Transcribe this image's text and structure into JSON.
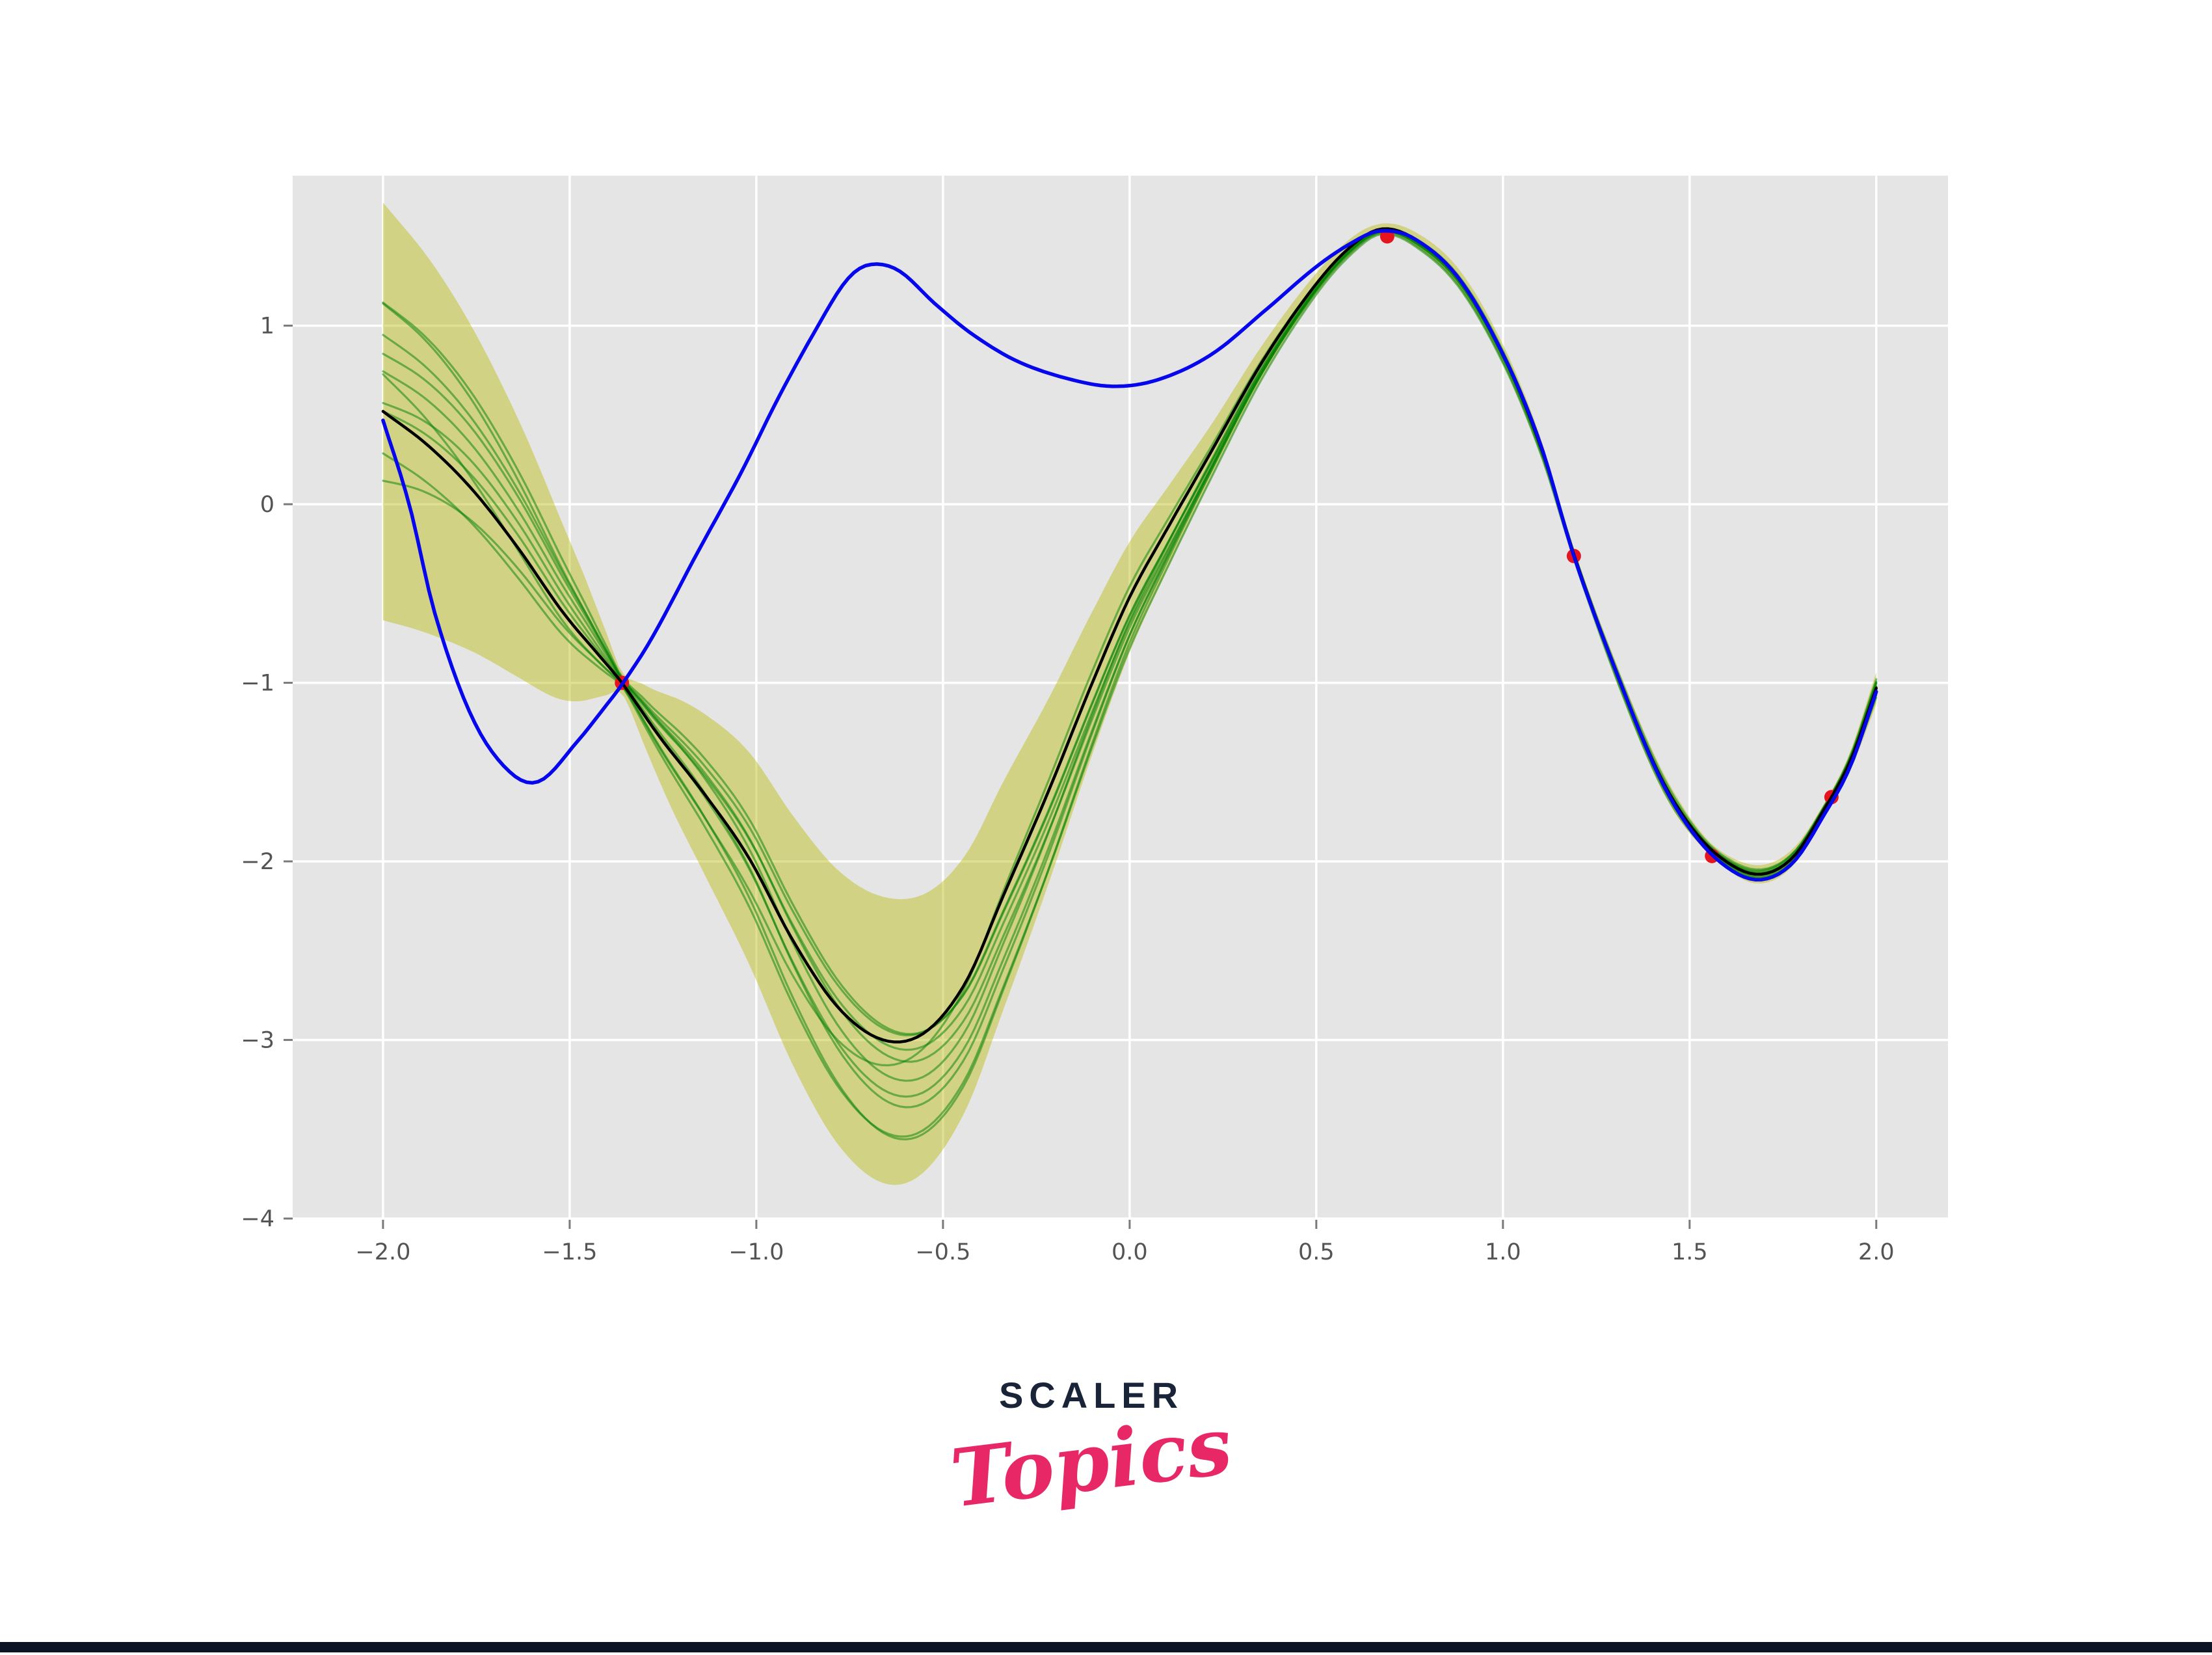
{
  "page": {
    "background": "#ffffff",
    "footer_bar_color": "#0c1424"
  },
  "logo": {
    "line1": "SCALER",
    "line1_color": "#1a2438",
    "line2": "Topics",
    "line2_color": "#e82866"
  },
  "chart_data": {
    "type": "line",
    "title": "",
    "xlabel": "",
    "ylabel": "",
    "grid": true,
    "legend": "none",
    "xlim": [
      -2.242,
      2.192
    ],
    "ylim": [
      -4.007,
      1.84
    ],
    "x_ticks": {
      "values": [
        -2.0,
        -1.5,
        -1.0,
        -0.5,
        0.0,
        0.5,
        1.0,
        1.5,
        2.0
      ],
      "labels": [
        "−2.0",
        "−1.5",
        "−1.0",
        "−0.5",
        "0.0",
        "0.5",
        "1.0",
        "1.5",
        "2.0"
      ]
    },
    "y_ticks": {
      "values": [
        1,
        0,
        -1,
        -2,
        -3,
        -4
      ],
      "labels": [
        "1",
        "0",
        "−1",
        "−2",
        "−3",
        "−4"
      ]
    },
    "style": {
      "plot_bg": "#e5e5e5",
      "grid_color": "#ffffff",
      "band_color": "rgba(187,187,16,0.45)",
      "sample_color": "rgba(0,128,0,0.5)",
      "mean_color": "#000000",
      "true_color": "#0707ee",
      "obs_color": "#e6141e",
      "tick_color": "#7a7a7a",
      "tick_label_color": "#545454"
    },
    "series": [
      {
        "name": "true-function",
        "role": "true underlying function",
        "color_key": "true_color",
        "points": [
          [
            -2.0,
            0.47
          ],
          [
            -1.93,
            0.0
          ],
          [
            -1.86,
            -0.62
          ],
          [
            -1.76,
            -1.2
          ],
          [
            -1.66,
            -1.5
          ],
          [
            -1.58,
            -1.55
          ],
          [
            -1.48,
            -1.33
          ],
          [
            -1.4,
            -1.12
          ],
          [
            -1.36,
            -1.01
          ],
          [
            -1.28,
            -0.75
          ],
          [
            -1.16,
            -0.28
          ],
          [
            -1.04,
            0.18
          ],
          [
            -0.94,
            0.6
          ],
          [
            -0.84,
            0.98
          ],
          [
            -0.76,
            1.25
          ],
          [
            -0.7,
            1.34
          ],
          [
            -0.62,
            1.31
          ],
          [
            -0.52,
            1.12
          ],
          [
            -0.42,
            0.95
          ],
          [
            -0.3,
            0.8
          ],
          [
            -0.16,
            0.7
          ],
          [
            -0.04,
            0.66
          ],
          [
            0.08,
            0.7
          ],
          [
            0.22,
            0.84
          ],
          [
            0.36,
            1.08
          ],
          [
            0.5,
            1.33
          ],
          [
            0.6,
            1.47
          ],
          [
            0.67,
            1.53
          ],
          [
            0.76,
            1.49
          ],
          [
            0.88,
            1.27
          ],
          [
            1.0,
            0.84
          ],
          [
            1.1,
            0.34
          ],
          [
            1.19,
            -0.29
          ],
          [
            1.3,
            -0.92
          ],
          [
            1.42,
            -1.53
          ],
          [
            1.52,
            -1.87
          ],
          [
            1.62,
            -2.06
          ],
          [
            1.7,
            -2.1
          ],
          [
            1.78,
            -2.0
          ],
          [
            1.86,
            -1.74
          ],
          [
            1.93,
            -1.47
          ],
          [
            2.0,
            -1.05
          ]
        ]
      },
      {
        "name": "gp-mean",
        "role": "Gaussian process posterior mean",
        "color_key": "mean_color",
        "points": [
          [
            -2.0,
            0.52
          ],
          [
            -1.88,
            0.33
          ],
          [
            -1.76,
            0.08
          ],
          [
            -1.64,
            -0.24
          ],
          [
            -1.52,
            -0.6
          ],
          [
            -1.42,
            -0.85
          ],
          [
            -1.36,
            -1.0
          ],
          [
            -1.26,
            -1.3
          ],
          [
            -1.14,
            -1.62
          ],
          [
            -1.02,
            -1.98
          ],
          [
            -0.9,
            -2.45
          ],
          [
            -0.78,
            -2.82
          ],
          [
            -0.66,
            -3.0
          ],
          [
            -0.55,
            -2.96
          ],
          [
            -0.44,
            -2.68
          ],
          [
            -0.34,
            -2.2
          ],
          [
            -0.22,
            -1.62
          ],
          [
            -0.1,
            -1.0
          ],
          [
            0.0,
            -0.52
          ],
          [
            0.1,
            -0.14
          ],
          [
            0.22,
            0.3
          ],
          [
            0.35,
            0.78
          ],
          [
            0.48,
            1.18
          ],
          [
            0.58,
            1.42
          ],
          [
            0.67,
            1.54
          ],
          [
            0.76,
            1.49
          ],
          [
            0.88,
            1.27
          ],
          [
            1.0,
            0.84
          ],
          [
            1.1,
            0.33
          ],
          [
            1.19,
            -0.28
          ],
          [
            1.3,
            -0.92
          ],
          [
            1.42,
            -1.52
          ],
          [
            1.52,
            -1.85
          ],
          [
            1.62,
            -2.03
          ],
          [
            1.7,
            -2.07
          ],
          [
            1.78,
            -1.97
          ],
          [
            1.86,
            -1.71
          ],
          [
            1.93,
            -1.44
          ],
          [
            2.0,
            -1.03
          ]
        ]
      },
      {
        "name": "confidence-band",
        "role": "uncertainty envelope: mean ± half_width",
        "color_key": "band_color",
        "x_range": [
          -2.0,
          2.0
        ],
        "half_width_knots": [
          [
            -2.0,
            1.17
          ],
          [
            -1.85,
            1.02
          ],
          [
            -1.7,
            0.82
          ],
          [
            -1.58,
            0.62
          ],
          [
            -1.48,
            0.4
          ],
          [
            -1.4,
            0.17
          ],
          [
            -1.36,
            0.06
          ],
          [
            -1.3,
            0.17
          ],
          [
            -1.2,
            0.36
          ],
          [
            -1.05,
            0.56
          ],
          [
            -0.9,
            0.7
          ],
          [
            -0.75,
            0.78
          ],
          [
            -0.62,
            0.8
          ],
          [
            -0.48,
            0.74
          ],
          [
            -0.34,
            0.64
          ],
          [
            -0.2,
            0.5
          ],
          [
            -0.08,
            0.38
          ],
          [
            0.0,
            0.31
          ],
          [
            0.1,
            0.23
          ],
          [
            0.22,
            0.15
          ],
          [
            0.35,
            0.095
          ],
          [
            0.5,
            0.06
          ],
          [
            0.6,
            0.045
          ],
          [
            0.67,
            0.03
          ],
          [
            0.8,
            0.045
          ],
          [
            0.95,
            0.055
          ],
          [
            1.08,
            0.05
          ],
          [
            1.19,
            0.03
          ],
          [
            1.32,
            0.05
          ],
          [
            1.45,
            0.055
          ],
          [
            1.56,
            0.035
          ],
          [
            1.66,
            0.05
          ],
          [
            1.76,
            0.05
          ],
          [
            1.88,
            0.035
          ],
          [
            2.0,
            0.09
          ]
        ]
      },
      {
        "name": "posterior-samples",
        "role": "sample paths drawn from the posterior: y = mean + z(x)*half_width, z = bias + amp*sin(freq*(x+2)+phase)",
        "color_key": "sample_color",
        "params": [
          {
            "bias": 0.1,
            "amp": 0.5,
            "freq": 1.6,
            "phase": 1.0
          },
          {
            "bias": 0.05,
            "amp": 0.5,
            "freq": 1.9,
            "phase": 1.2
          },
          {
            "bias": 0.0,
            "amp": 0.45,
            "freq": 1.5,
            "phase": 0.95
          },
          {
            "bias": -0.1,
            "amp": 0.5,
            "freq": 1.7,
            "phase": 0.85
          },
          {
            "bias": -0.2,
            "amp": 0.5,
            "freq": 1.4,
            "phase": 0.9
          },
          {
            "bias": -0.25,
            "amp": 0.45,
            "freq": 2.1,
            "phase": 0.7
          },
          {
            "bias": -0.3,
            "amp": 0.4,
            "freq": 1.8,
            "phase": 0.85
          },
          {
            "bias": -0.5,
            "amp": 0.35,
            "freq": 2.3,
            "phase": 0.5
          },
          {
            "bias": -0.05,
            "amp": 0.25,
            "freq": 2.8,
            "phase": 2.0
          },
          {
            "bias": -0.6,
            "amp": 0.4,
            "freq": 1.3,
            "phase": 1.5
          }
        ]
      }
    ],
    "observations": {
      "name": "training-points",
      "points": [
        [
          -1.36,
          -1.0
        ],
        [
          0.69,
          1.5
        ],
        [
          1.19,
          -0.29
        ],
        [
          1.56,
          -1.97
        ],
        [
          1.88,
          -1.64
        ]
      ]
    }
  }
}
